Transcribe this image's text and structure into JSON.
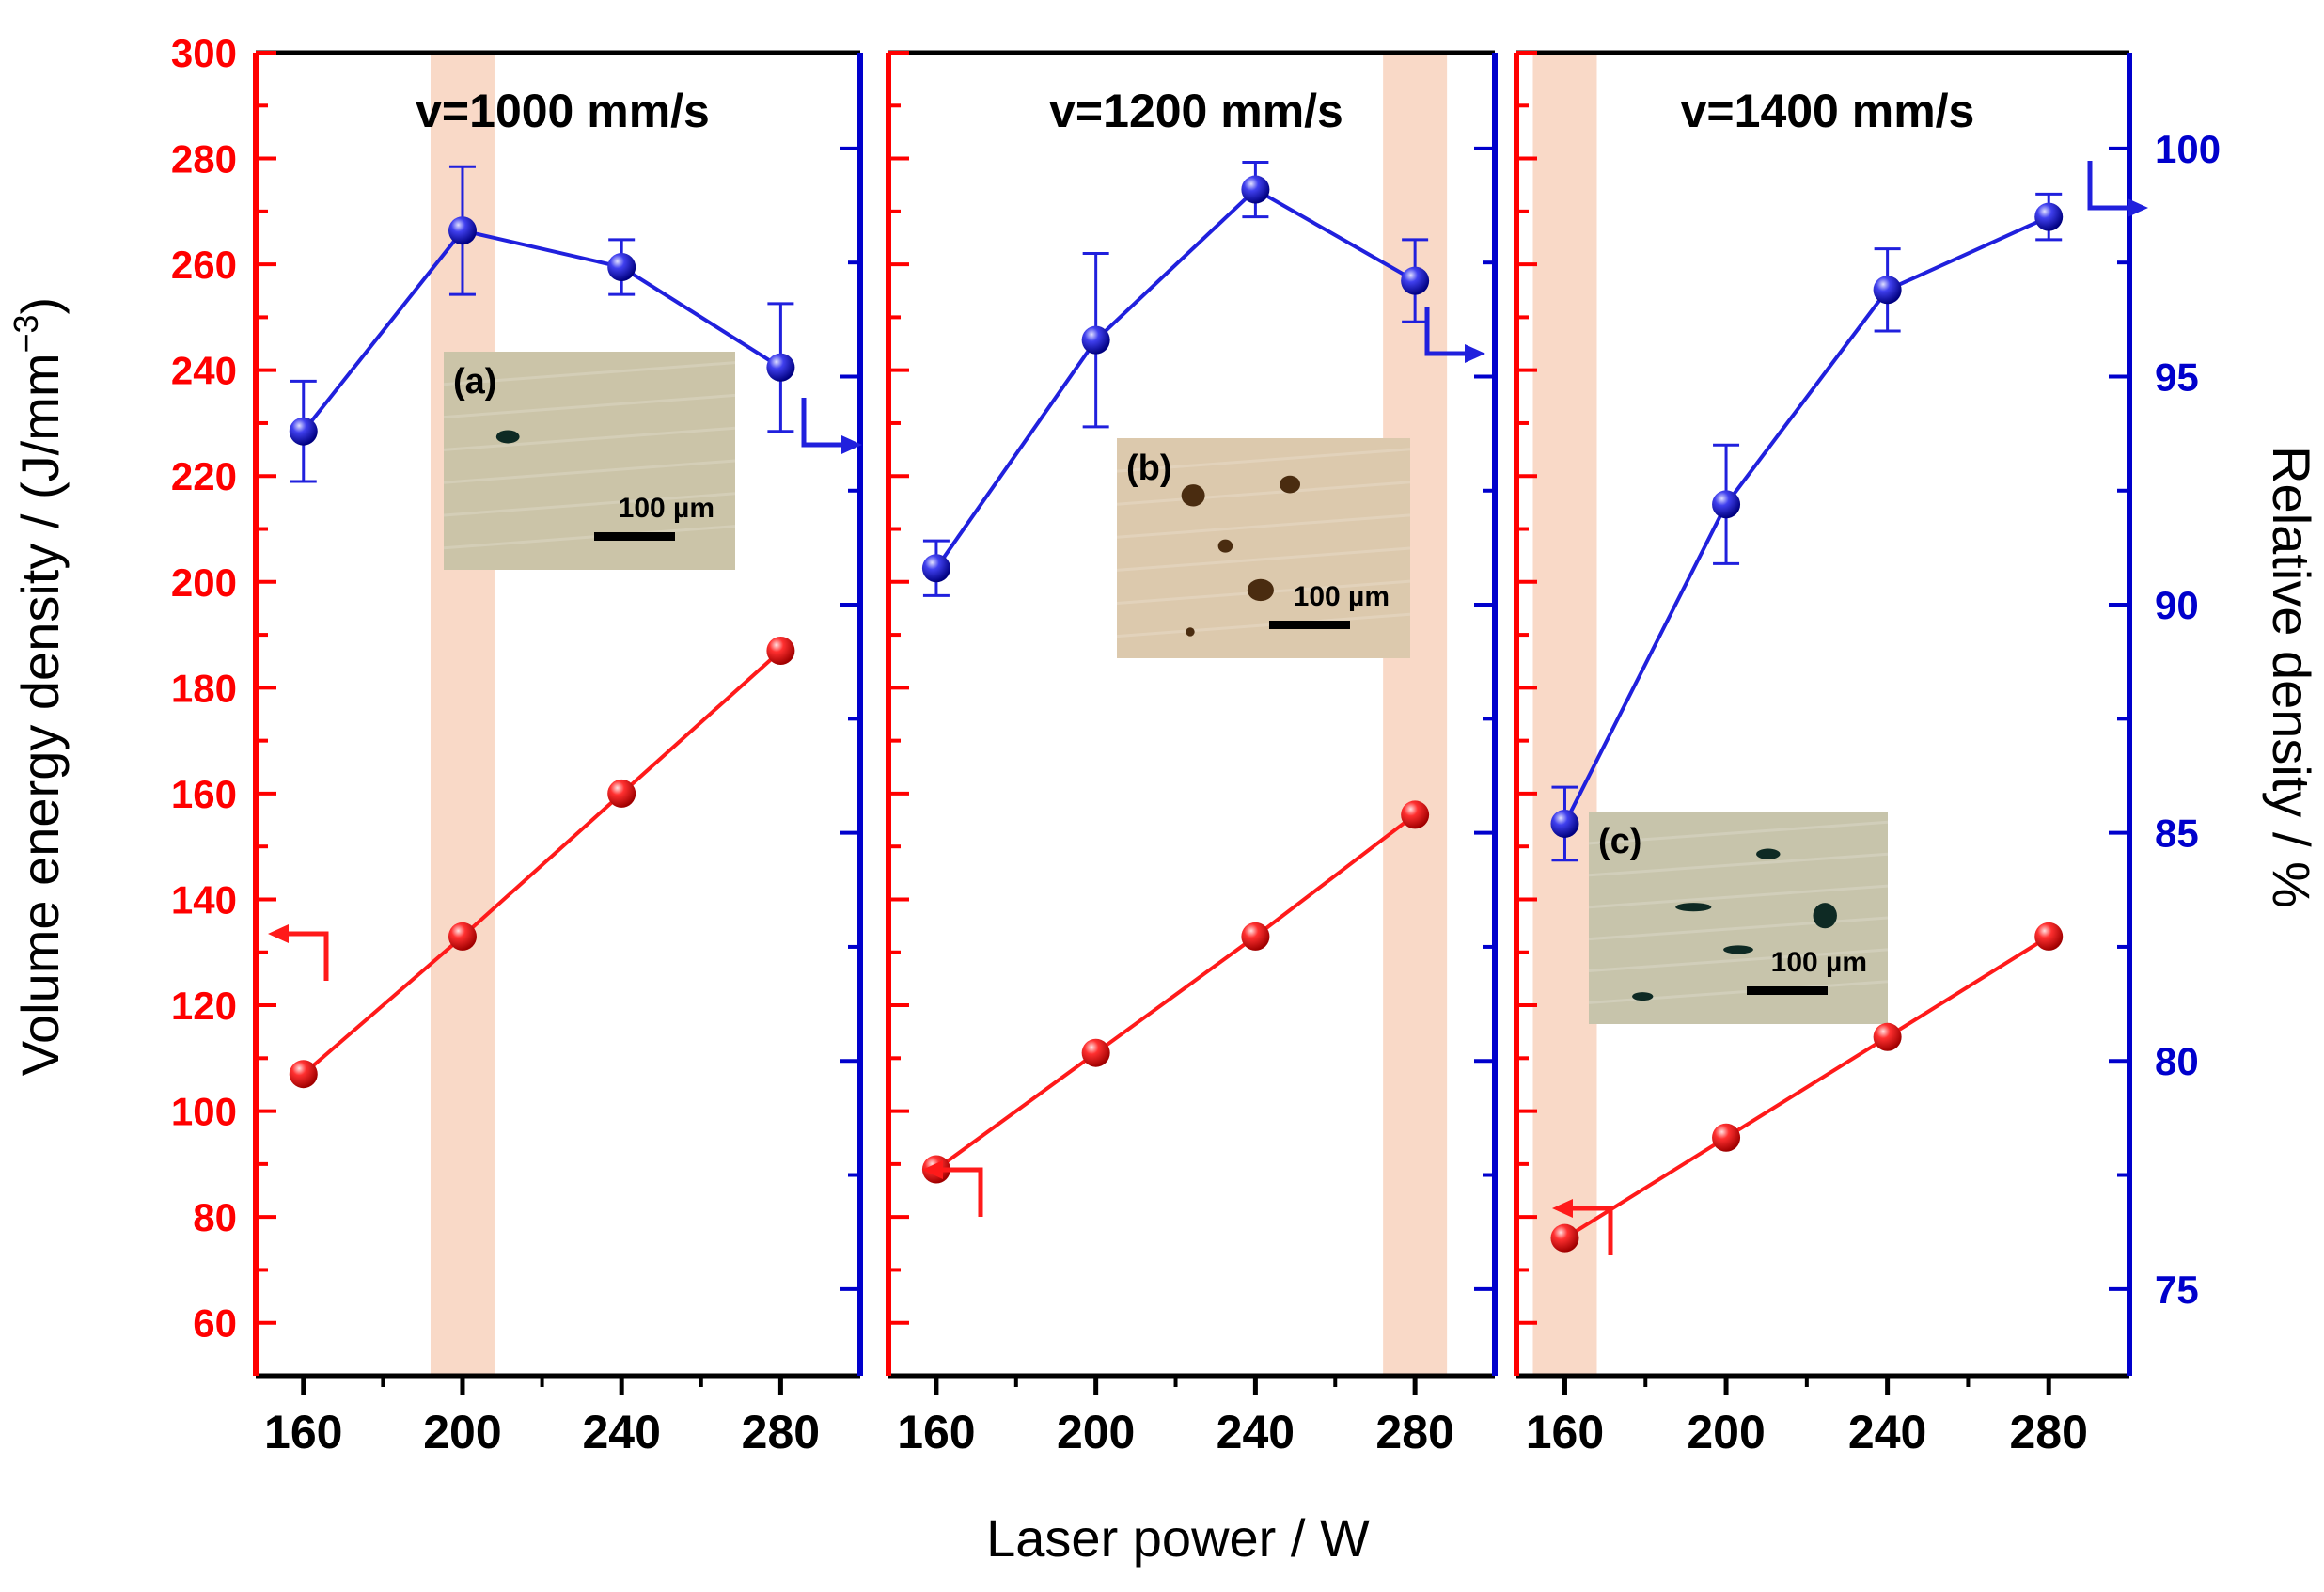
{
  "chart_data": {
    "type": "line",
    "xlabel": "Laser power / W",
    "ylabel_left": "Volume energy density / (J/mm",
    "ylabel_left_exponent": "−3",
    "ylabel_left_close": ")",
    "ylabel_right": "Relative density / %",
    "left_ylim": [
      50,
      300
    ],
    "left_yticks": [
      60,
      80,
      100,
      120,
      140,
      160,
      180,
      200,
      220,
      240,
      260,
      280,
      300
    ],
    "right_ylim": [
      73.1,
      102.1
    ],
    "right_yticks": [
      75,
      80,
      85,
      90,
      95,
      100
    ],
    "xlim": [
      148,
      300
    ],
    "xticks": [
      160,
      200,
      240,
      280
    ],
    "colors": {
      "energy": "#ff1a1a",
      "density": "#2020dd",
      "left_axis": "#ff0000",
      "right_axis": "#0000cc",
      "highlight": "#f9d9c7"
    },
    "panels": [
      {
        "title": "v=1000 mm/s",
        "x": [
          160,
          200,
          240,
          280
        ],
        "energy_density": [
          107,
          133,
          160,
          187
        ],
        "relative_density": [
          93.8,
          98.2,
          97.4,
          95.2
        ],
        "relative_density_error": [
          1.1,
          1.4,
          0.6,
          1.4
        ],
        "highlight_x": 200,
        "inset": {
          "label": "(a)",
          "scale_bar": "100 µm",
          "background": "#cbc4a8",
          "pores": [
            {
              "cx": 0.22,
              "cy": 0.39,
              "rx": 0.04,
              "ry": 0.03
            }
          ]
        }
      },
      {
        "title": "v=1200 mm/s",
        "x": [
          160,
          200,
          240,
          280
        ],
        "energy_density": [
          89,
          111,
          133,
          156
        ],
        "relative_density": [
          90.8,
          95.8,
          99.1,
          97.1
        ],
        "relative_density_error": [
          0.6,
          1.9,
          0.6,
          0.9
        ],
        "highlight_x": 280,
        "inset": {
          "label": "(b)",
          "scale_bar": "100 µm",
          "background": "#dcc9ad",
          "pores": [
            {
              "cx": 0.26,
              "cy": 0.26,
              "rx": 0.04,
              "ry": 0.05
            },
            {
              "cx": 0.59,
              "cy": 0.21,
              "rx": 0.035,
              "ry": 0.04
            },
            {
              "cx": 0.37,
              "cy": 0.49,
              "rx": 0.025,
              "ry": 0.03
            },
            {
              "cx": 0.49,
              "cy": 0.69,
              "rx": 0.045,
              "ry": 0.05
            },
            {
              "cx": 0.25,
              "cy": 0.88,
              "rx": 0.015,
              "ry": 0.02
            }
          ]
        }
      },
      {
        "title": "v=1400 mm/s",
        "x": [
          160,
          200,
          240,
          280
        ],
        "energy_density": [
          76,
          95,
          114,
          133
        ],
        "relative_density": [
          85.2,
          92.2,
          96.9,
          98.5
        ],
        "relative_density_error": [
          0.8,
          1.3,
          0.9,
          0.5
        ],
        "highlight_x": 160,
        "inset": {
          "label": "(c)",
          "scale_bar": "100 µm",
          "background": "#c7c4ab",
          "pores": [
            {
              "cx": 0.6,
              "cy": 0.2,
              "rx": 0.04,
              "ry": 0.025
            },
            {
              "cx": 0.35,
              "cy": 0.45,
              "rx": 0.06,
              "ry": 0.02
            },
            {
              "cx": 0.79,
              "cy": 0.49,
              "rx": 0.04,
              "ry": 0.06
            },
            {
              "cx": 0.5,
              "cy": 0.65,
              "rx": 0.05,
              "ry": 0.02
            },
            {
              "cx": 0.18,
              "cy": 0.87,
              "rx": 0.035,
              "ry": 0.02
            }
          ]
        }
      }
    ]
  }
}
